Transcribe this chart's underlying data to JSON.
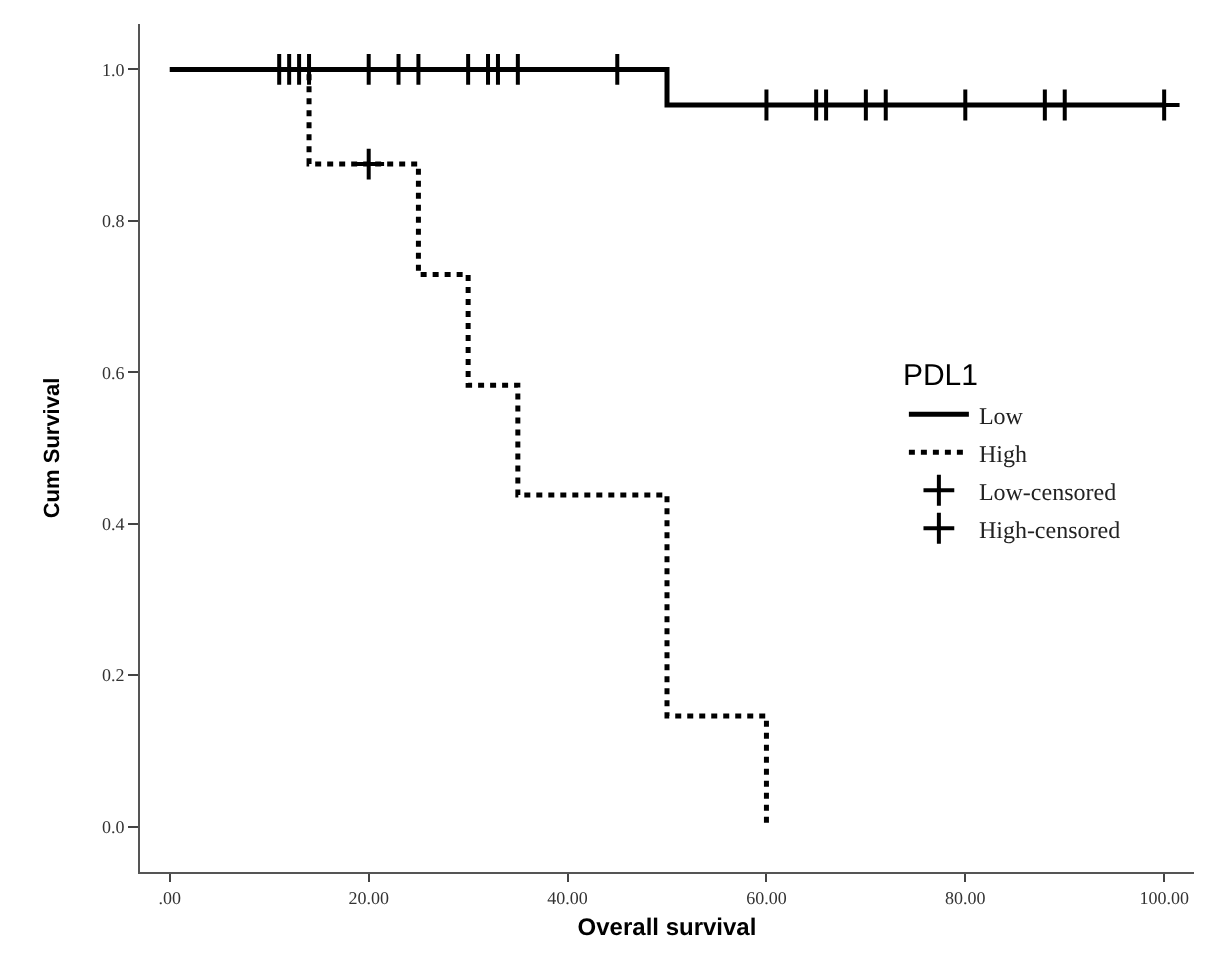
{
  "chart_data": {
    "type": "step",
    "xlabel": "Overall survival",
    "ylabel": "Cum Survival",
    "legend_title": "PDL1",
    "legend": "right",
    "grid": false,
    "xlim": [
      -3,
      103
    ],
    "xticks": [
      {
        "value": 0,
        "label": ".00"
      },
      {
        "value": 20,
        "label": "20.00"
      },
      {
        "value": 40,
        "label": "40.00"
      },
      {
        "value": 60,
        "label": "60.00"
      },
      {
        "value": 80,
        "label": "80.00"
      },
      {
        "value": 100,
        "label": "100.00"
      }
    ],
    "ylim": [
      -0.06,
      1.06
    ],
    "yticks": [
      {
        "value": 0,
        "label": "0.0"
      },
      {
        "value": 0.2,
        "label": "0.2"
      },
      {
        "value": 0.4,
        "label": "0.4"
      },
      {
        "value": 0.6,
        "label": "0.6"
      },
      {
        "value": 0.8,
        "label": "0.8"
      },
      {
        "value": 1,
        "label": "1.0"
      }
    ],
    "series": [
      {
        "name": "Low",
        "color": "#000000",
        "line_style": "solid",
        "x": [
          0,
          50,
          100
        ],
        "values": [
          1,
          0.953,
          0.953
        ]
      },
      {
        "name": "High",
        "color": "#000000",
        "line_style": "dotted",
        "x": [
          0,
          14,
          25,
          30,
          35,
          50,
          60
        ],
        "values": [
          1,
          0.875,
          0.729,
          0.583,
          0.438,
          0.146,
          0
        ]
      },
      {
        "name": "Low-censored",
        "type": "scatter",
        "marker": "cross",
        "color": "#000000",
        "x": [
          11,
          12,
          13,
          14,
          20,
          23,
          25,
          30,
          32,
          33,
          35,
          45,
          60,
          65,
          66,
          70,
          72,
          80,
          88,
          90,
          100
        ],
        "values": [
          1,
          1,
          1,
          1,
          1,
          1,
          1,
          1,
          1,
          1,
          1,
          1,
          0.953,
          0.953,
          0.953,
          0.953,
          0.953,
          0.953,
          0.953,
          0.953,
          0.953
        ]
      },
      {
        "name": "High-censored",
        "type": "scatter",
        "marker": "cross",
        "color": "#000000",
        "x": [
          20
        ],
        "values": [
          0.875
        ]
      }
    ]
  }
}
